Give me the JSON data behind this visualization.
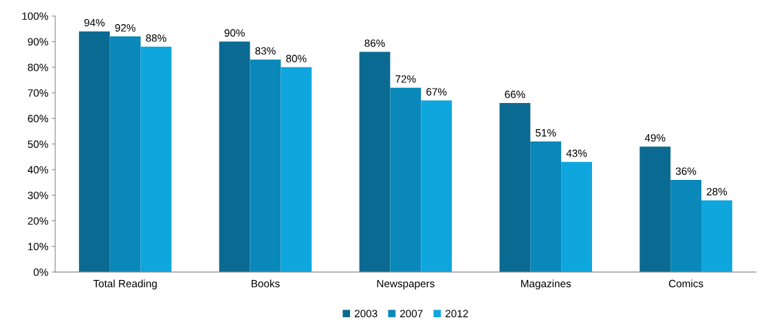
{
  "chart_data": {
    "type": "bar",
    "categories": [
      "Total Reading",
      "Books",
      "Newspapers",
      "Magazines",
      "Comics"
    ],
    "series": [
      {
        "name": "2003",
        "color": "#0b6a92",
        "values": [
          94,
          90,
          86,
          66,
          49
        ],
        "value_labels": [
          "94%",
          "90%",
          "86%",
          "66%",
          "49%"
        ]
      },
      {
        "name": "2007",
        "color": "#0a88b9",
        "values": [
          92,
          83,
          72,
          51,
          36
        ],
        "value_labels": [
          "92%",
          "83%",
          "72%",
          "51%",
          "36%"
        ]
      },
      {
        "name": "2012",
        "color": "#0fa6de",
        "values": [
          88,
          80,
          67,
          43,
          28
        ],
        "value_labels": [
          "88%",
          "80%",
          "67%",
          "43%",
          "28%"
        ]
      }
    ],
    "ylim": [
      0,
      100
    ],
    "yticks": [
      {
        "value": 0,
        "label": "0%"
      },
      {
        "value": 10,
        "label": "10%"
      },
      {
        "value": 20,
        "label": "20%"
      },
      {
        "value": 30,
        "label": "30%"
      },
      {
        "value": 40,
        "label": "40%"
      },
      {
        "value": 50,
        "label": "50%"
      },
      {
        "value": 60,
        "label": "60%"
      },
      {
        "value": 70,
        "label": "70%"
      },
      {
        "value": 80,
        "label": "80%"
      },
      {
        "value": 90,
        "label": "90%"
      },
      {
        "value": 100,
        "label": "100%"
      }
    ],
    "grid": false,
    "legend": "bottom"
  }
}
